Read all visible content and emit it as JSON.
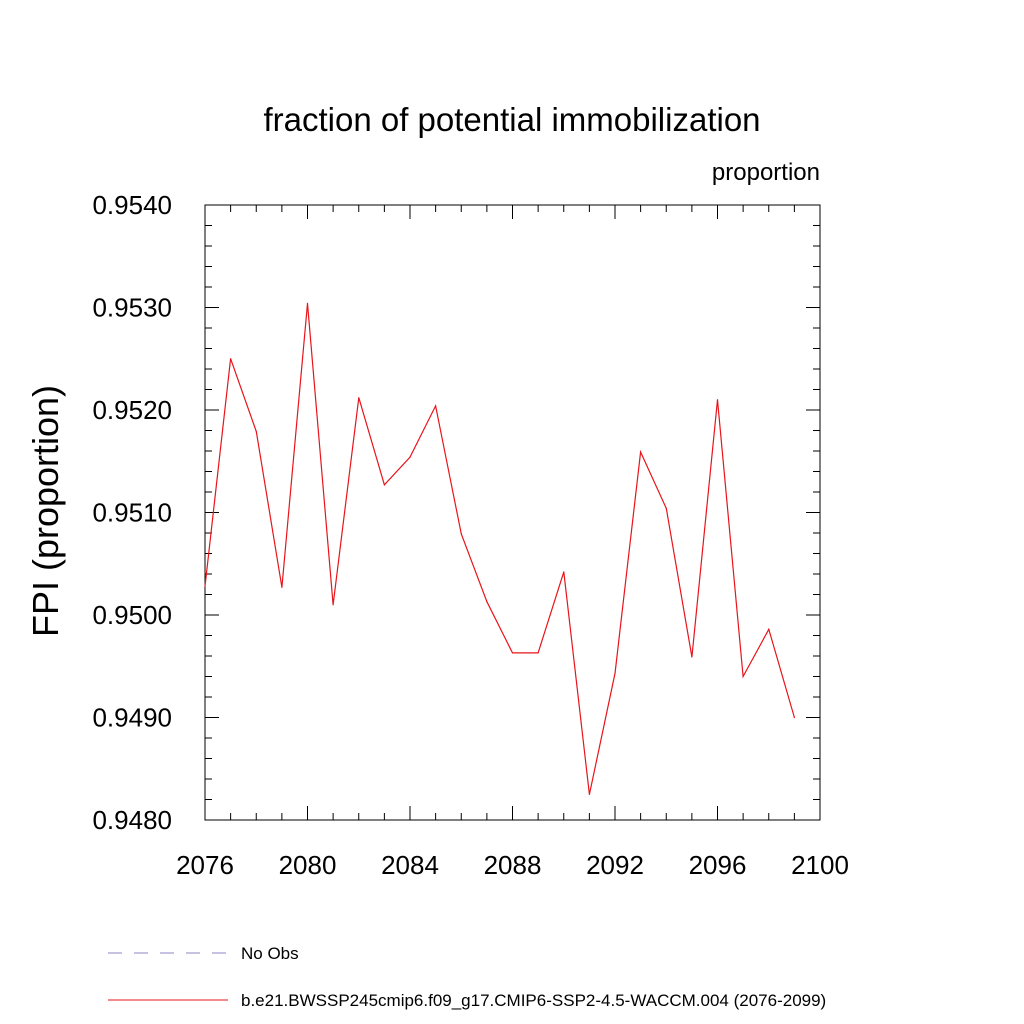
{
  "chart_data": {
    "type": "line",
    "title": "fraction of potential immobilization",
    "units_label": "proportion",
    "ylabel": "FPI  (proportion)",
    "xlabel": "",
    "xlim": [
      2076,
      2100
    ],
    "ylim": [
      0.948,
      0.954
    ],
    "x_ticks": [
      2076,
      2080,
      2084,
      2088,
      2092,
      2096,
      2100
    ],
    "y_ticks": [
      "0.9480",
      "0.9490",
      "0.9500",
      "0.9510",
      "0.9520",
      "0.9530",
      "0.9540"
    ],
    "y_tick_values": [
      0.948,
      0.949,
      0.95,
      0.951,
      0.952,
      0.953,
      0.954
    ],
    "grid": false,
    "legend_position": "bottom",
    "series": [
      {
        "name": "b.e21.BWSSP245cmip6.f09_g17.CMIP6-SSP2-4.5-WACCM.004 (2076-2099)",
        "color": "#e8141a",
        "dash": "solid",
        "x": [
          2076,
          2077,
          2078,
          2079,
          2080,
          2081,
          2082,
          2083,
          2084,
          2085,
          2086,
          2087,
          2088,
          2089,
          2090,
          2091,
          2092,
          2093,
          2094,
          2095,
          2096,
          2097,
          2098,
          2099
        ],
        "y": [
          0.95028,
          0.9525,
          0.95179,
          0.95027,
          0.95304,
          0.9501,
          0.95212,
          0.95127,
          0.95154,
          0.95204,
          0.95079,
          0.95013,
          0.94963,
          0.94963,
          0.95042,
          0.94825,
          0.94943,
          0.95159,
          0.95104,
          0.94959,
          0.9521,
          0.9494,
          0.94986,
          0.949
        ]
      },
      {
        "name": "No Obs",
        "color": "#8b86c4",
        "dash": "dashed",
        "x": [],
        "y": []
      }
    ]
  }
}
